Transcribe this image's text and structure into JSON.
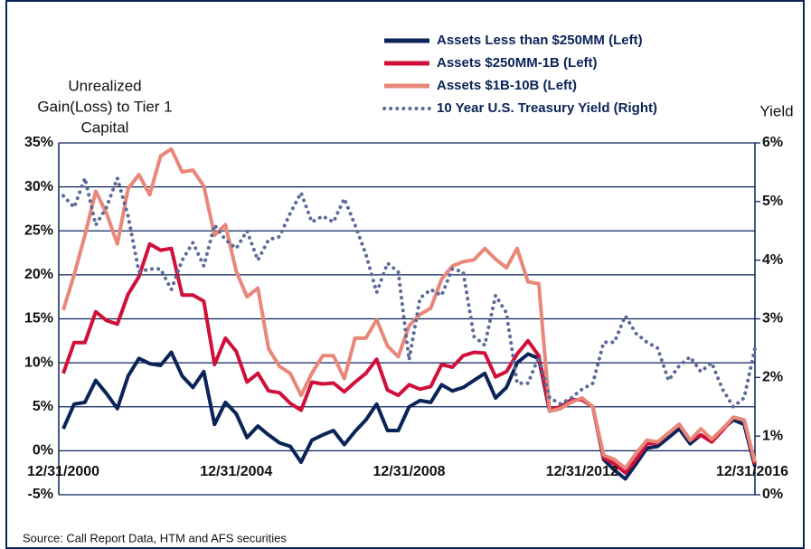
{
  "chart_data": {
    "type": "line",
    "y_axis_label": [
      "Unrealized",
      "Gain(Loss) to Tier 1",
      "Capital"
    ],
    "y2_axis_label": "Yield",
    "source": "Source: Call Report Data, HTM and AFS securities",
    "categories": [
      "12/31/2000",
      null,
      null,
      null,
      null,
      null,
      null,
      null,
      null,
      null,
      null,
      null,
      null,
      null,
      null,
      null,
      "12/31/2004",
      null,
      null,
      null,
      null,
      null,
      null,
      null,
      null,
      null,
      null,
      null,
      null,
      null,
      null,
      null,
      "12/31/2008",
      null,
      null,
      null,
      null,
      null,
      null,
      null,
      null,
      null,
      null,
      null,
      null,
      null,
      null,
      null,
      "12/31/2012",
      null,
      null,
      null,
      null,
      null,
      null,
      null,
      null,
      null,
      null,
      null,
      null,
      null,
      null,
      null,
      "12/31/2016"
    ],
    "series": [
      {
        "name": "Assets Less than $250MM (Left)",
        "color": "#0a2458",
        "style": "solid",
        "values": [
          2.5,
          5.3,
          5.5,
          8,
          6.5,
          4.8,
          8.5,
          10.5,
          9.9,
          9.7,
          11.2,
          8.5,
          7.2,
          9,
          3,
          5.5,
          4.2,
          1.5,
          2.8,
          1.8,
          0.9,
          0.5,
          -1.3,
          1.2,
          1.8,
          2.3,
          0.7,
          2.2,
          3.5,
          5.3,
          2.3,
          2.3,
          5,
          5.7,
          5.5,
          7.5,
          6.8,
          7.2,
          8,
          8.8,
          6,
          7.2,
          10,
          11,
          10.5,
          4.5,
          4.8,
          5.8,
          5.8,
          5,
          -1,
          -2.2,
          -3.2,
          -1.5,
          0.3,
          0.5,
          1.5,
          2.5,
          0.8,
          1.8,
          1,
          2.5,
          3.5,
          3,
          -1.8
        ]
      },
      {
        "name": "Assets $250MM-1B (Left)",
        "color": "#d0103a",
        "style": "solid",
        "values": [
          8.8,
          12.3,
          12.3,
          15.8,
          14.8,
          14.4,
          17.8,
          19.8,
          23.5,
          22.8,
          23,
          17.7,
          17.7,
          17,
          9.8,
          12.8,
          11.3,
          7.8,
          8.8,
          6.8,
          6.6,
          5.4,
          4.6,
          7.8,
          7.6,
          7.7,
          6.7,
          7.8,
          8.8,
          10.4,
          6.9,
          6.3,
          7.5,
          7,
          7.3,
          9.8,
          9.5,
          10.8,
          11.2,
          11.1,
          8.4,
          9,
          11,
          12.5,
          10.8,
          4.7,
          5,
          5.8,
          5.8,
          5,
          -0.8,
          -1.5,
          -2.5,
          -1,
          0.8,
          0.9,
          2,
          3,
          1.2,
          1.8,
          1,
          2.3,
          3.8,
          3.5,
          -1.5
        ]
      },
      {
        "name": "Assets $1B-10B (Left)",
        "color": "#e8877a",
        "style": "solid",
        "values": [
          16,
          20,
          24.5,
          29.5,
          27,
          23.5,
          29.8,
          31.4,
          29.1,
          33.5,
          34.3,
          31.7,
          31.9,
          30.1,
          24.5,
          25.7,
          20.4,
          17.5,
          18.5,
          11.6,
          9.6,
          8.8,
          6.3,
          8.8,
          10.8,
          10.8,
          8.2,
          12.8,
          12.8,
          14.9,
          11.9,
          10.7,
          14.2,
          15.5,
          16.2,
          19.5,
          21,
          21.5,
          21.7,
          23,
          21.8,
          20.8,
          23,
          19.2,
          19,
          4.5,
          4.8,
          5.5,
          6,
          5,
          -0.5,
          -1,
          -2,
          -0.3,
          1.2,
          1,
          2,
          3,
          1.2,
          2.5,
          1.3,
          2.5,
          3.8,
          3.5,
          -1.3
        ]
      },
      {
        "name": "10 Year U.S. Treasury Yield (Right)",
        "color": "#5c6a9a",
        "style": "dotted",
        "axis": "y2",
        "values": [
          5.1,
          4.9,
          5.4,
          4.6,
          4.9,
          5.4,
          4.75,
          3.8,
          3.85,
          3.85,
          3.5,
          4,
          4.3,
          3.9,
          4.6,
          4.35,
          4.2,
          4.5,
          4,
          4.35,
          4.4,
          4.8,
          5.15,
          4.65,
          4.75,
          4.65,
          5.05,
          4.6,
          4.1,
          3.45,
          3.95,
          3.8,
          2.3,
          3.35,
          3.5,
          3.4,
          3.85,
          3.8,
          2.7,
          2.55,
          3.4,
          3.1,
          1.9,
          1.9,
          2.35,
          1.65,
          1.55,
          1.65,
          1.8,
          1.9,
          2.6,
          2.6,
          3.05,
          2.75,
          2.6,
          2.5,
          1.95,
          2.2,
          2.35,
          2.1,
          2.25,
          1.8,
          1.5,
          1.65,
          2.5
        ]
      }
    ],
    "ylim": [
      -5,
      35
    ],
    "yticks": [
      {
        "value": -5,
        "label": "-5%"
      },
      {
        "value": 0,
        "label": "0%"
      },
      {
        "value": 5,
        "label": "5%"
      },
      {
        "value": 10,
        "label": "10%"
      },
      {
        "value": 15,
        "label": "15%"
      },
      {
        "value": 20,
        "label": "20%"
      },
      {
        "value": 25,
        "label": "25%"
      },
      {
        "value": 30,
        "label": "30%"
      },
      {
        "value": 35,
        "label": "35%"
      }
    ],
    "y2lim": [
      0,
      6
    ],
    "y2ticks": [
      {
        "value": 0,
        "label": "0%"
      },
      {
        "value": 1,
        "label": "1%"
      },
      {
        "value": 2,
        "label": "2%"
      },
      {
        "value": 3,
        "label": "3%"
      },
      {
        "value": 4,
        "label": "4%"
      },
      {
        "value": 5,
        "label": "5%"
      },
      {
        "value": 6,
        "label": "6%"
      }
    ],
    "grid": true
  }
}
